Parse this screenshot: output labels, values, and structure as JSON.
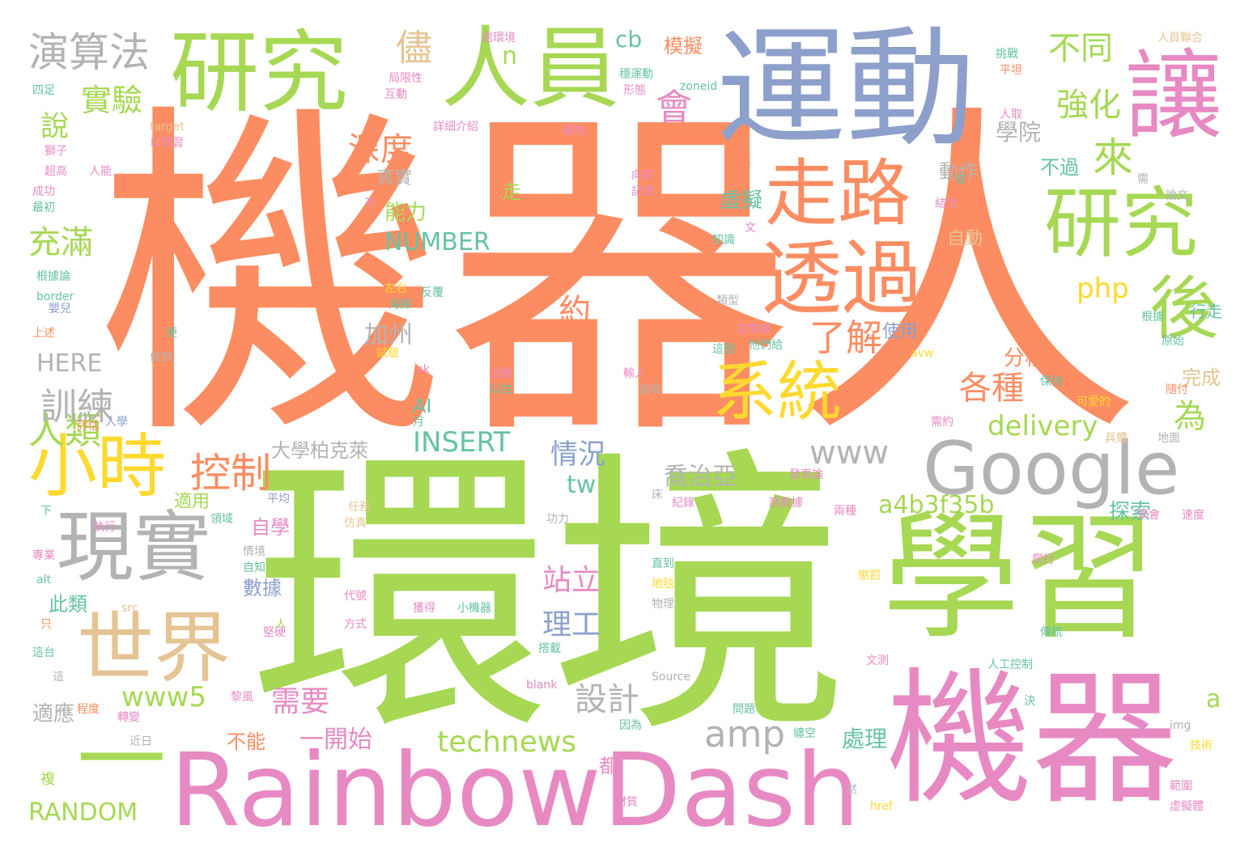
{
  "palette": {
    "orange": "#fc8d62",
    "green": "#a6d854",
    "blue": "#8da0cb",
    "pink": "#e78ac3",
    "yellow": "#ffd92f",
    "tan": "#e5c494",
    "gray": "#b3b3b3",
    "teal": "#66c2a5"
  },
  "words": [
    {
      "text": "機器人",
      "color": "orange"
    },
    {
      "text": "環境",
      "color": "green"
    },
    {
      "text": "運動",
      "color": "blue"
    },
    {
      "text": "學習",
      "color": "green"
    },
    {
      "text": "機器",
      "color": "pink"
    },
    {
      "text": "Rainbow",
      "color": "pink"
    },
    {
      "text": "Dash",
      "color": "pink"
    },
    {
      "text": "研究",
      "color": "green"
    },
    {
      "text": "人員",
      "color": "green"
    },
    {
      "text": "讓",
      "color": "pink"
    },
    {
      "text": "走路",
      "color": "orange"
    },
    {
      "text": "透過",
      "color": "orange"
    },
    {
      "text": "研究",
      "color": "green"
    },
    {
      "text": "後",
      "color": "green"
    },
    {
      "text": "系統",
      "color": "yellow"
    },
    {
      "text": "Google",
      "color": "gray"
    },
    {
      "text": "小時",
      "color": "yellow"
    },
    {
      "text": "現實",
      "color": "gray"
    },
    {
      "text": "世界",
      "color": "tan"
    },
    {
      "text": "一",
      "color": "green"
    },
    {
      "text": "演算法",
      "color": "gray"
    },
    {
      "text": "實驗",
      "color": "green"
    },
    {
      "text": "深度",
      "color": "orange"
    },
    {
      "text": "控制",
      "color": "orange"
    },
    {
      "text": "人類",
      "color": "green"
    },
    {
      "text": "訓練",
      "color": "gray"
    },
    {
      "text": "充滿",
      "color": "green"
    },
    {
      "text": "說",
      "color": "green"
    },
    {
      "text": "不同",
      "color": "green"
    },
    {
      "text": "強化",
      "color": "green"
    },
    {
      "text": "學院",
      "color": "gray"
    },
    {
      "text": "來",
      "color": "green"
    },
    {
      "text": "會",
      "color": "pink"
    },
    {
      "text": "儘",
      "color": "tan"
    },
    {
      "text": "n",
      "color": "green"
    },
    {
      "text": "cb",
      "color": "teal"
    },
    {
      "text": "模擬",
      "color": "orange"
    },
    {
      "text": "www",
      "color": "gray"
    },
    {
      "text": "amp",
      "color": "gray"
    },
    {
      "text": "a4b3f35b",
      "color": "green"
    },
    {
      "text": "delivery",
      "color": "green"
    },
    {
      "text": "各種",
      "color": "orange"
    },
    {
      "text": "為",
      "color": "green"
    },
    {
      "text": "php",
      "color": "yellow"
    },
    {
      "text": "了解",
      "color": "orange"
    },
    {
      "text": "約",
      "color": "orange"
    },
    {
      "text": "加州",
      "color": "gray"
    },
    {
      "text": "INSERT",
      "color": "teal"
    },
    {
      "text": "NUMBER",
      "color": "teal"
    },
    {
      "text": "HERE",
      "color": "gray"
    },
    {
      "text": "RANDOM",
      "color": "green"
    },
    {
      "text": "technews",
      "color": "green"
    },
    {
      "text": "www5",
      "color": "green"
    },
    {
      "text": "喬治亞",
      "color": "gray"
    },
    {
      "text": "情況",
      "color": "blue"
    },
    {
      "text": "tw",
      "color": "teal"
    },
    {
      "text": "站立",
      "color": "pink"
    },
    {
      "text": "理工",
      "color": "blue"
    },
    {
      "text": "設計",
      "color": "gray"
    },
    {
      "text": "需要",
      "color": "pink"
    },
    {
      "text": "大學柏克萊",
      "color": "gray"
    },
    {
      "text": "能力",
      "color": "green"
    },
    {
      "text": "虛擬",
      "color": "teal"
    },
    {
      "text": "動作",
      "color": "gray"
    },
    {
      "text": "自動",
      "color": "tan"
    },
    {
      "text": "分校",
      "color": "orange"
    },
    {
      "text": "完成",
      "color": "tan"
    },
    {
      "text": "探索",
      "color": "teal"
    },
    {
      "text": "處理",
      "color": "teal"
    },
    {
      "text": "一開始",
      "color": "pink"
    },
    {
      "text": "不能",
      "color": "orange"
    },
    {
      "text": "適應",
      "color": "gray"
    },
    {
      "text": "此類",
      "color": "teal"
    },
    {
      "text": "數據",
      "color": "blue"
    },
    {
      "text": "自學",
      "color": "pink"
    },
    {
      "text": "使用",
      "color": "blue"
    },
    {
      "text": "AI",
      "color": "teal"
    },
    {
      "text": "行走",
      "color": "teal"
    },
    {
      "text": "不過",
      "color": "teal"
    },
    {
      "text": "真實",
      "color": "gray"
    },
    {
      "text": "於",
      "color": "orange"
    },
    {
      "text": "a",
      "color": "green"
    },
    {
      "text": "適用",
      "color": "green"
    },
    {
      "text": "都",
      "color": "pink"
    },
    {
      "text": "走",
      "color": "green"
    },
    {
      "text": "處環境",
      "color": "pink"
    },
    {
      "text": "局限性",
      "color": "pink"
    },
    {
      "text": "互動",
      "color": "pink"
    },
    {
      "text": "詳細介紹",
      "color": "pink"
    },
    {
      "text": "以學習",
      "color": "pink"
    },
    {
      "text": "target",
      "color": "tan"
    },
    {
      "text": "四足",
      "color": "teal"
    },
    {
      "text": "獅子",
      "color": "pink"
    },
    {
      "text": "超高",
      "color": "pink"
    },
    {
      "text": "人能",
      "color": "pink"
    },
    {
      "text": "成功",
      "color": "pink"
    },
    {
      "text": "最初",
      "color": "teal"
    },
    {
      "text": "根據論",
      "color": "teal"
    },
    {
      "text": "border",
      "color": "teal"
    },
    {
      "text": "嬰兒",
      "color": "blue"
    },
    {
      "text": "上述",
      "color": "orange"
    },
    {
      "text": "評估",
      "color": "orange"
    },
    {
      "text": "人學",
      "color": "blue"
    },
    {
      "text": "下",
      "color": "teal"
    },
    {
      "text": "專業",
      "color": "pink"
    },
    {
      "text": "alt",
      "color": "teal"
    },
    {
      "text": "只",
      "color": "orange"
    },
    {
      "text": "這台",
      "color": "teal"
    },
    {
      "text": "這",
      "color": "gray"
    },
    {
      "text": "程度",
      "color": "orange"
    },
    {
      "text": "轉變",
      "color": "pink"
    },
    {
      "text": "複",
      "color": "green"
    },
    {
      "text": "近日",
      "color": "gray"
    },
    {
      "text": "執行",
      "color": "pink"
    },
    {
      "text": "領域",
      "color": "teal"
    },
    {
      "text": "平均",
      "color": "blue"
    },
    {
      "text": "任務",
      "color": "tan"
    },
    {
      "text": "仿真",
      "color": "tan"
    },
    {
      "text": "情境",
      "color": "gray"
    },
    {
      "text": "自知",
      "color": "teal"
    },
    {
      "text": "代號",
      "color": "pink"
    },
    {
      "text": "src",
      "color": "tan"
    },
    {
      "text": "堅硬",
      "color": "pink"
    },
    {
      "text": "人",
      "color": "green"
    },
    {
      "text": "方式",
      "color": "pink"
    },
    {
      "text": "搭載",
      "color": "teal"
    },
    {
      "text": "blank",
      "color": "pink"
    },
    {
      "text": "黎風",
      "color": "pink"
    },
    {
      "text": "獲得",
      "color": "pink"
    },
    {
      "text": "小機器",
      "color": "teal"
    },
    {
      "text": "物理",
      "color": "gray"
    },
    {
      "text": "地毯",
      "color": "yellow"
    },
    {
      "text": "直到",
      "color": "teal"
    },
    {
      "text": "紀錄",
      "color": "pink"
    },
    {
      "text": "床",
      "color": "gray"
    },
    {
      "text": "功力",
      "color": "gray"
    },
    {
      "text": "Source",
      "color": "gray"
    },
    {
      "text": "文測",
      "color": "pink"
    },
    {
      "text": "問題",
      "color": "teal"
    },
    {
      "text": "纏空",
      "color": "teal"
    },
    {
      "text": "因為",
      "color": "teal"
    },
    {
      "text": "材質",
      "color": "pink"
    },
    {
      "text": "然",
      "color": "gray"
    },
    {
      "text": "href",
      "color": "yellow"
    },
    {
      "text": "決",
      "color": "teal"
    },
    {
      "text": "人工控制",
      "color": "teal"
    },
    {
      "text": "傳統",
      "color": "teal"
    },
    {
      "text": "img",
      "color": "gray"
    },
    {
      "text": "技術",
      "color": "yellow"
    },
    {
      "text": "範圍",
      "color": "pink"
    },
    {
      "text": "虛擬體",
      "color": "pink"
    },
    {
      "text": "學會",
      "color": "pink"
    },
    {
      "text": "速度",
      "color": "pink"
    },
    {
      "text": "爬行",
      "color": "pink"
    },
    {
      "text": "懲罰",
      "color": "yellow"
    },
    {
      "text": "誘數據",
      "color": "pink"
    },
    {
      "text": "兩種",
      "color": "pink"
    },
    {
      "text": "發表論",
      "color": "pink"
    },
    {
      "text": "具體",
      "color": "tan"
    },
    {
      "text": "地面",
      "color": "gray"
    },
    {
      "text": "可愛的",
      "color": "yellow"
    },
    {
      "text": "需約",
      "color": "pink"
    },
    {
      "text": "隨付",
      "color": "orange"
    },
    {
      "text": "原始",
      "color": "teal"
    },
    {
      "text": "根據",
      "color": "teal"
    },
    {
      "text": "保持",
      "color": "teal"
    },
    {
      "text": "avw",
      "color": "yellow"
    },
    {
      "text": "他們給",
      "color": "teal"
    },
    {
      "text": "這個",
      "color": "teal"
    },
    {
      "text": "並根據",
      "color": "pink"
    },
    {
      "text": "類型",
      "color": "gray"
    },
    {
      "text": "知識",
      "color": "teal"
    },
    {
      "text": "文",
      "color": "pink"
    },
    {
      "text": "結合",
      "color": "pink"
    },
    {
      "text": "從",
      "color": "teal"
    },
    {
      "text": "需",
      "color": "gray"
    },
    {
      "text": "論文",
      "color": "gray"
    },
    {
      "text": "人取",
      "color": "pink"
    },
    {
      "text": "平坦",
      "color": "orange"
    },
    {
      "text": "挑戰",
      "color": "teal"
    },
    {
      "text": "人員聯合",
      "color": "tan"
    },
    {
      "text": "並平",
      "color": "orange"
    },
    {
      "text": "最快",
      "color": "pink"
    },
    {
      "text": "zoneid",
      "color": "teal"
    },
    {
      "text": "穩運動",
      "color": "teal"
    },
    {
      "text": "形態",
      "color": "pink"
    },
    {
      "text": "向前",
      "color": "pink"
    },
    {
      "text": "記憶",
      "color": "pink"
    },
    {
      "text": "不",
      "color": "pink"
    },
    {
      "text": "反覆",
      "color": "teal"
    },
    {
      "text": "海綿",
      "color": "teal"
    },
    {
      "text": "左右",
      "color": "yellow"
    },
    {
      "text": "試驗",
      "color": "yellow"
    },
    {
      "text": "ck",
      "color": "pink"
    },
    {
      "text": "活動",
      "color": "pink"
    },
    {
      "text": "以往",
      "color": "teal"
    },
    {
      "text": "輸入",
      "color": "pink"
    },
    {
      "text": "接收",
      "color": "gray"
    },
    {
      "text": "月",
      "color": "teal"
    },
    {
      "text": "做到",
      "color": "gray"
    },
    {
      "text": "便",
      "color": "teal"
    }
  ]
}
